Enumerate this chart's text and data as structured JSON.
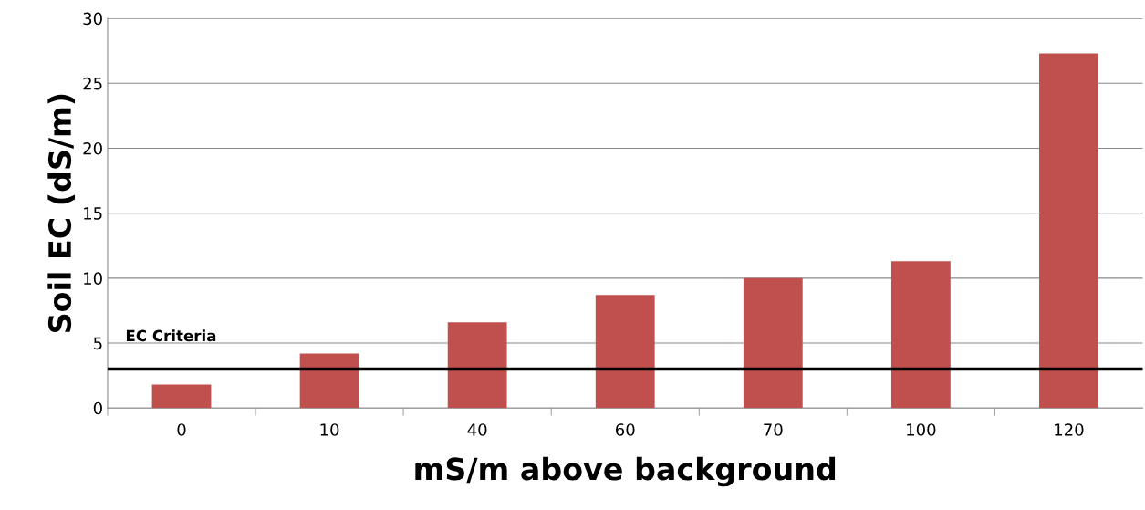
{
  "chart_data": {
    "type": "bar",
    "xlabel": "mS/m above background",
    "ylabel": "Soil EC (dS/m)",
    "categories": [
      "0",
      "10",
      "40",
      "60",
      "70",
      "100",
      "120"
    ],
    "values": [
      1.8,
      4.2,
      6.6,
      8.7,
      10.0,
      11.3,
      27.3
    ],
    "color": "#c0504d",
    "ylim": [
      0,
      30
    ],
    "yticks": [
      0,
      5,
      10,
      15,
      20,
      25,
      30
    ],
    "grid": "y",
    "ref_lines": [
      {
        "axis": "y",
        "value": 3,
        "label": "EC Criteria",
        "color": "#000000",
        "line_style": "solid"
      }
    ]
  }
}
